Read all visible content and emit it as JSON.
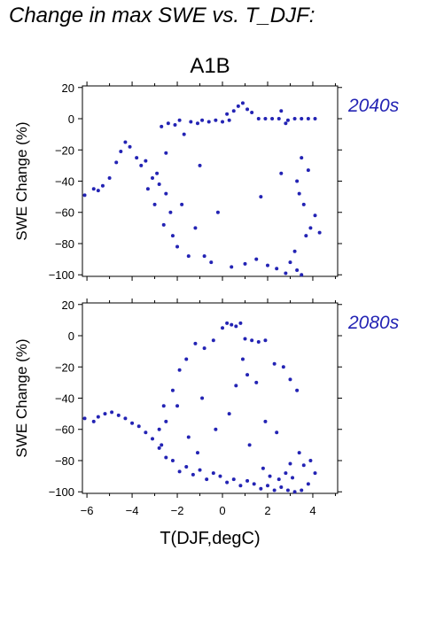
{
  "title": "Change in max SWE vs. T_DJF:",
  "chart_data": {
    "type": "scatter",
    "scenario": "A1B",
    "xlabel": "T(DJF,degC)",
    "ylabel": "SWE Change (%)",
    "xlim": [
      -6.2,
      5.1
    ],
    "ylim": [
      -101,
      21
    ],
    "x_ticks": [
      -6,
      -4,
      -2,
      0,
      2,
      4
    ],
    "y_ticks": [
      20,
      0,
      -20,
      -40,
      -60,
      -80,
      -100
    ],
    "point_color": "#2323b4",
    "label_color": "#2323b4",
    "panels": [
      {
        "period": "2040s",
        "points": [
          [
            -6.1,
            -49
          ],
          [
            -5.7,
            -45
          ],
          [
            -5.5,
            -46
          ],
          [
            -5.3,
            -43
          ],
          [
            -5.0,
            -38
          ],
          [
            -4.7,
            -28
          ],
          [
            -4.5,
            -21
          ],
          [
            -4.3,
            -15
          ],
          [
            -4.1,
            -18
          ],
          [
            -3.8,
            -25
          ],
          [
            -3.6,
            -30
          ],
          [
            -3.4,
            -27
          ],
          [
            -3.1,
            -38
          ],
          [
            -2.8,
            -42
          ],
          [
            -2.5,
            -48
          ],
          [
            -2.7,
            -5
          ],
          [
            -2.4,
            -3
          ],
          [
            -2.1,
            -4
          ],
          [
            -1.9,
            -1
          ],
          [
            -1.7,
            -10
          ],
          [
            -1.4,
            -2
          ],
          [
            -1.1,
            -3
          ],
          [
            -0.9,
            -1
          ],
          [
            -0.6,
            -2
          ],
          [
            -0.3,
            -1
          ],
          [
            0.0,
            -2
          ],
          [
            0.3,
            -1
          ],
          [
            0.5,
            5
          ],
          [
            0.7,
            8
          ],
          [
            0.9,
            10
          ],
          [
            1.1,
            6
          ],
          [
            1.3,
            4
          ],
          [
            0.2,
            3
          ],
          [
            1.6,
            0
          ],
          [
            1.9,
            0
          ],
          [
            2.2,
            0
          ],
          [
            2.5,
            0
          ],
          [
            2.9,
            -1
          ],
          [
            3.2,
            0
          ],
          [
            3.5,
            0
          ],
          [
            3.8,
            0
          ],
          [
            4.1,
            0
          ],
          [
            2.6,
            5
          ],
          [
            2.8,
            -3
          ],
          [
            3.0,
            -92
          ],
          [
            3.3,
            -97
          ],
          [
            3.5,
            -100
          ],
          [
            3.2,
            -85
          ],
          [
            3.7,
            -75
          ],
          [
            3.9,
            -70
          ],
          [
            4.1,
            -62
          ],
          [
            4.3,
            -73
          ],
          [
            3.6,
            -55
          ],
          [
            3.4,
            -48
          ],
          [
            3.8,
            -33
          ],
          [
            3.5,
            -25
          ],
          [
            3.3,
            -40
          ],
          [
            -2.5,
            -22
          ],
          [
            -2.3,
            -60
          ],
          [
            -2.6,
            -68
          ],
          [
            -2.2,
            -75
          ],
          [
            -2.0,
            -82
          ],
          [
            -1.5,
            -88
          ],
          [
            -0.5,
            -92
          ],
          [
            0.4,
            -95
          ],
          [
            1.0,
            -93
          ],
          [
            1.5,
            -90
          ],
          [
            2.0,
            -94
          ],
          [
            2.4,
            -96
          ],
          [
            2.8,
            -99
          ],
          [
            -0.8,
            -88
          ],
          [
            -1.2,
            -70
          ],
          [
            -1.8,
            -55
          ],
          [
            -0.2,
            -60
          ],
          [
            1.7,
            -50
          ],
          [
            2.6,
            -35
          ],
          [
            -3.0,
            -55
          ],
          [
            -2.9,
            -35
          ],
          [
            -3.3,
            -45
          ],
          [
            -1.0,
            -30
          ]
        ]
      },
      {
        "period": "2080s",
        "points": [
          [
            -6.1,
            -53
          ],
          [
            -5.7,
            -55
          ],
          [
            -5.5,
            -52
          ],
          [
            -5.2,
            -50
          ],
          [
            -4.9,
            -49
          ],
          [
            -4.6,
            -51
          ],
          [
            -4.3,
            -53
          ],
          [
            -4.0,
            -56
          ],
          [
            -3.7,
            -58
          ],
          [
            -3.4,
            -62
          ],
          [
            -3.1,
            -66
          ],
          [
            -2.8,
            -60
          ],
          [
            -2.5,
            -55
          ],
          [
            -2.6,
            -45
          ],
          [
            -2.2,
            -35
          ],
          [
            -1.9,
            -22
          ],
          [
            -1.6,
            -15
          ],
          [
            -1.2,
            -5
          ],
          [
            -0.8,
            -8
          ],
          [
            -0.4,
            -3
          ],
          [
            0.0,
            5
          ],
          [
            0.2,
            8
          ],
          [
            0.4,
            7
          ],
          [
            0.6,
            6
          ],
          [
            0.8,
            8
          ],
          [
            1.0,
            -2
          ],
          [
            1.3,
            -3
          ],
          [
            1.6,
            -4
          ],
          [
            1.9,
            -3
          ],
          [
            0.9,
            -15
          ],
          [
            1.1,
            -25
          ],
          [
            1.5,
            -30
          ],
          [
            2.3,
            -18
          ],
          [
            2.7,
            -20
          ],
          [
            3.0,
            -28
          ],
          [
            3.3,
            -35
          ],
          [
            3.4,
            -75
          ],
          [
            3.6,
            -83
          ],
          [
            3.9,
            -80
          ],
          [
            4.1,
            -88
          ],
          [
            3.8,
            -95
          ],
          [
            3.5,
            -99
          ],
          [
            3.2,
            -100
          ],
          [
            2.9,
            -99
          ],
          [
            2.6,
            -97
          ],
          [
            2.3,
            -99
          ],
          [
            2.0,
            -96
          ],
          [
            1.7,
            -98
          ],
          [
            1.4,
            -95
          ],
          [
            1.1,
            -93
          ],
          [
            0.8,
            -96
          ],
          [
            0.5,
            -92
          ],
          [
            0.2,
            -94
          ],
          [
            -0.1,
            -90
          ],
          [
            -0.4,
            -88
          ],
          [
            -0.7,
            -92
          ],
          [
            -1.0,
            -86
          ],
          [
            -1.3,
            -89
          ],
          [
            -1.6,
            -84
          ],
          [
            -1.9,
            -87
          ],
          [
            -2.2,
            -80
          ],
          [
            -2.5,
            -78
          ],
          [
            -2.8,
            -72
          ],
          [
            2.1,
            -90
          ],
          [
            2.5,
            -92
          ],
          [
            1.8,
            -85
          ],
          [
            2.8,
            -88
          ],
          [
            3.1,
            -91
          ],
          [
            -0.3,
            -60
          ],
          [
            0.3,
            -50
          ],
          [
            1.2,
            -70
          ],
          [
            -1.5,
            -65
          ],
          [
            -2.0,
            -45
          ],
          [
            -0.9,
            -40
          ],
          [
            0.6,
            -32
          ],
          [
            1.9,
            -55
          ],
          [
            2.4,
            -62
          ],
          [
            -2.7,
            -70
          ],
          [
            3.0,
            -82
          ],
          [
            -1.1,
            -75
          ]
        ]
      }
    ]
  }
}
